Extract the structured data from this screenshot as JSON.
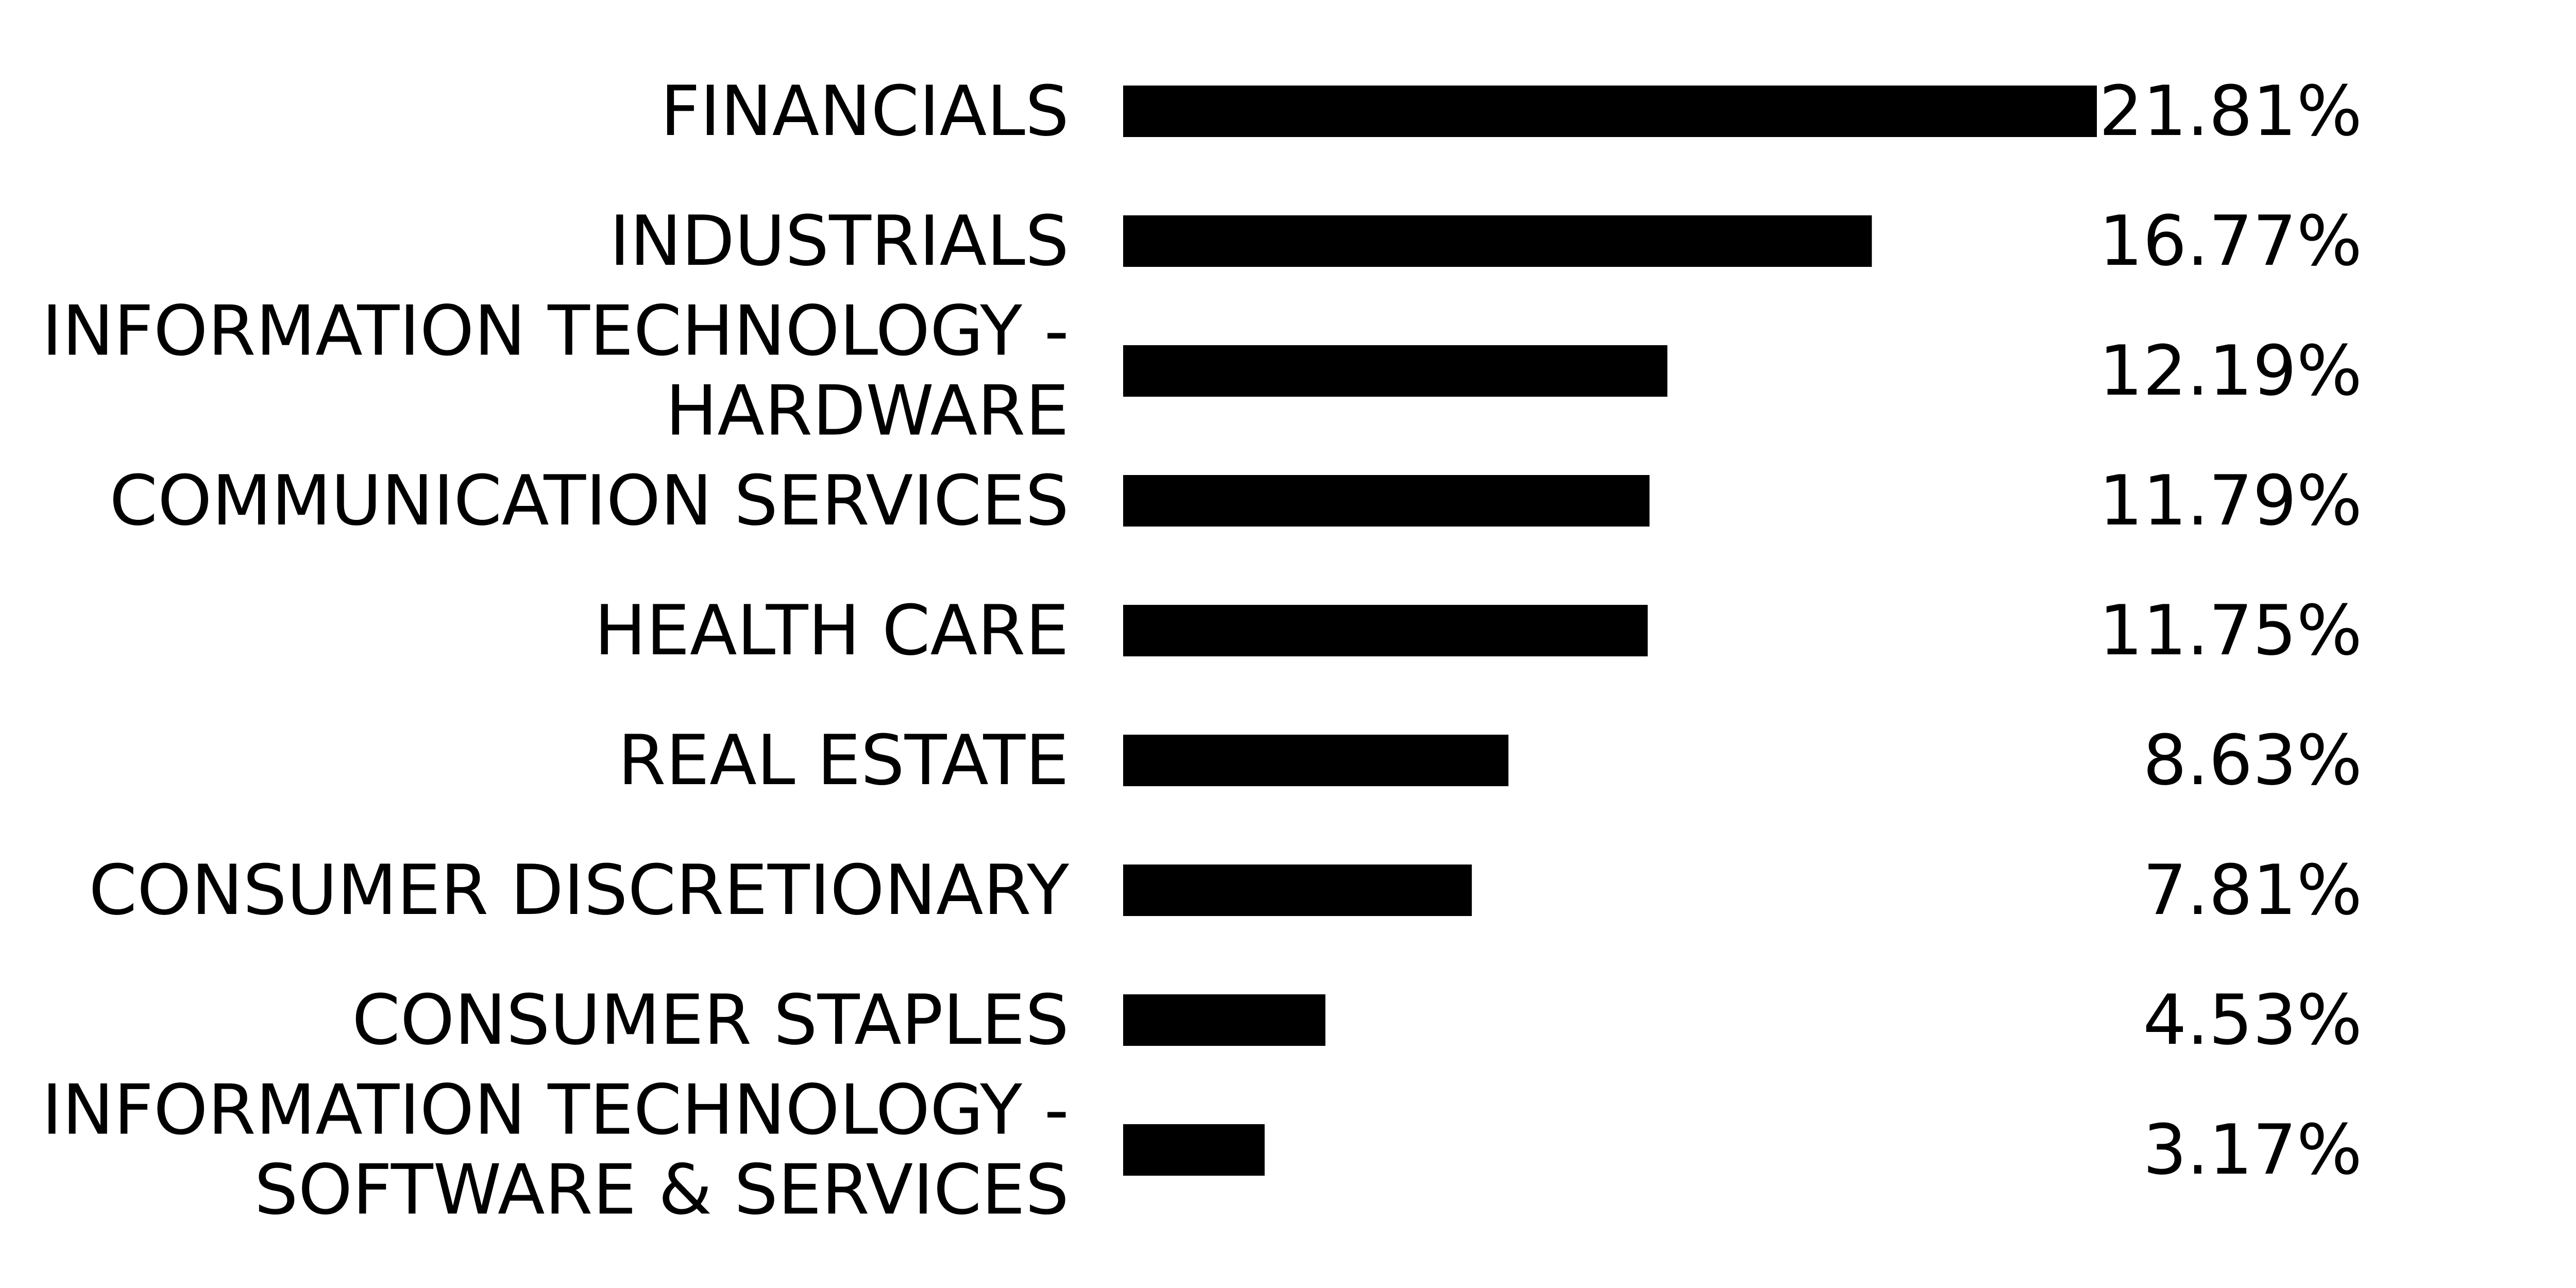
{
  "chart_data": {
    "type": "bar",
    "orientation": "horizontal",
    "title": "",
    "xlabel": "",
    "ylabel": "",
    "categories": [
      [
        "FINANCIALS"
      ],
      [
        "INDUSTRIALS"
      ],
      [
        "INFORMATION TECHNOLOGY -",
        "HARDWARE"
      ],
      [
        "COMMUNICATION SERVICES"
      ],
      [
        "HEALTH CARE"
      ],
      [
        "REAL ESTATE"
      ],
      [
        "CONSUMER DISCRETIONARY"
      ],
      [
        "CONSUMER STAPLES"
      ],
      [
        "INFORMATION TECHNOLOGY -",
        "SOFTWARE & SERVICES"
      ]
    ],
    "values": [
      21.81,
      16.77,
      12.19,
      11.79,
      11.75,
      8.63,
      7.81,
      4.53,
      3.17
    ],
    "value_labels": [
      "21.81%",
      "16.77%",
      "12.19%",
      "11.79%",
      "11.75%",
      "8.63%",
      "7.81%",
      "4.53%",
      "3.17%"
    ],
    "xlim": [
      0,
      21.81
    ],
    "grid": false,
    "legend": "none",
    "bar_color": "#000000",
    "text_color": "#000000",
    "background": "#ffffff"
  }
}
